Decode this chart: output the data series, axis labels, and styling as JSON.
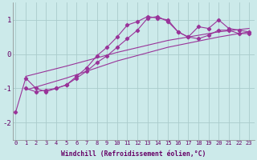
{
  "xlabel": "Windchill (Refroidissement éolien,°C)",
  "background_color": "#cceaea",
  "grid_color": "#aacccc",
  "line_color": "#993399",
  "x_min": 0,
  "x_max": 23,
  "y_min": -2.5,
  "y_max": 1.5,
  "yticks": [
    -2,
    -1,
    0,
    1
  ],
  "xticks": [
    0,
    1,
    2,
    3,
    4,
    5,
    6,
    7,
    8,
    9,
    10,
    11,
    12,
    13,
    14,
    15,
    16,
    17,
    18,
    19,
    20,
    21,
    22,
    23
  ],
  "series": [
    {
      "x": [
        0,
        1,
        2,
        3,
        4,
        5,
        6,
        7,
        8,
        9,
        10,
        11,
        12,
        13,
        14,
        15,
        16,
        17,
        18,
        19,
        20,
        21,
        22,
        23
      ],
      "y": [
        -1.7,
        -0.7,
        -1.0,
        -1.1,
        -1.0,
        -0.9,
        -0.65,
        -0.4,
        -0.05,
        0.2,
        0.5,
        0.85,
        0.95,
        1.1,
        1.05,
        1.0,
        0.65,
        0.5,
        0.8,
        0.75,
        1.0,
        0.75,
        0.7,
        0.65
      ],
      "has_markers": true
    },
    {
      "x": [
        1,
        5,
        10,
        15,
        20,
        23
      ],
      "y": [
        -0.65,
        -0.35,
        0.05,
        0.4,
        0.65,
        0.75
      ],
      "has_markers": false
    },
    {
      "x": [
        1,
        2,
        3,
        4,
        5,
        6,
        7,
        8,
        9,
        10,
        11,
        12,
        13,
        14,
        15,
        16,
        17,
        18,
        19,
        20,
        21,
        22,
        23
      ],
      "y": [
        -1.0,
        -1.1,
        -1.05,
        -1.0,
        -0.9,
        -0.7,
        -0.5,
        -0.25,
        -0.05,
        0.2,
        0.45,
        0.7,
        1.05,
        1.1,
        0.95,
        0.65,
        0.5,
        0.45,
        0.55,
        0.7,
        0.7,
        0.6,
        0.6
      ],
      "has_markers": true
    },
    {
      "x": [
        1,
        5,
        10,
        15,
        20,
        23
      ],
      "y": [
        -1.05,
        -0.7,
        -0.2,
        0.2,
        0.5,
        0.65
      ],
      "has_markers": false
    }
  ]
}
